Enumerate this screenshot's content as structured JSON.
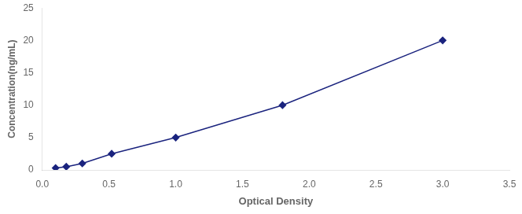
{
  "chart_data": {
    "type": "line",
    "x": [
      0.1,
      0.18,
      0.3,
      0.52,
      1.0,
      1.8,
      3.0
    ],
    "values": [
      0.3,
      0.5,
      1.0,
      2.5,
      5.0,
      10.0,
      20.0
    ],
    "color": "#1A237E",
    "marker": "diamond",
    "line_style": "solid",
    "xlabel": "Optical Density",
    "ylabel": "Concentration(ng/mL)",
    "xlim": [
      0,
      3.5
    ],
    "ylim": [
      0,
      25
    ],
    "xticks": [
      {
        "value": 0,
        "label": "0.0"
      },
      0.5,
      {
        "value": 1,
        "label": "1.0"
      },
      1.5,
      {
        "value": 2,
        "label": "2.0"
      },
      2.5,
      {
        "value": 3,
        "label": "3.0"
      },
      3.5
    ],
    "yticks": [
      0,
      5,
      10,
      15,
      20,
      25
    ],
    "grid": false
  }
}
